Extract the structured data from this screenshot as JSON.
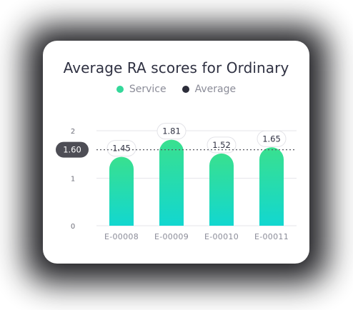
{
  "colors": {
    "service": "#34d89a",
    "service_top": "#39e08f",
    "service_bottom": "#12d7d0",
    "average": "#2c2d3a",
    "average_badge_bg": "#4d4d55",
    "average_badge_text": "#ffffff"
  },
  "chart_data": {
    "type": "bar",
    "title": "Average RA scores for Ordinary",
    "categories": [
      "E-00008",
      "E-00009",
      "E-00010",
      "E-00011"
    ],
    "series": [
      {
        "name": "Service",
        "values": [
          1.45,
          1.81,
          1.52,
          1.65
        ]
      }
    ],
    "value_labels": [
      "1.45",
      "1.81",
      "1.52",
      "1.65"
    ],
    "average": {
      "name": "Average",
      "value": 1.6,
      "label": "1.60"
    },
    "yticks": [
      "0",
      "1",
      "2"
    ],
    "ylim": [
      0,
      2
    ],
    "grid": true,
    "legend": "top-center"
  }
}
